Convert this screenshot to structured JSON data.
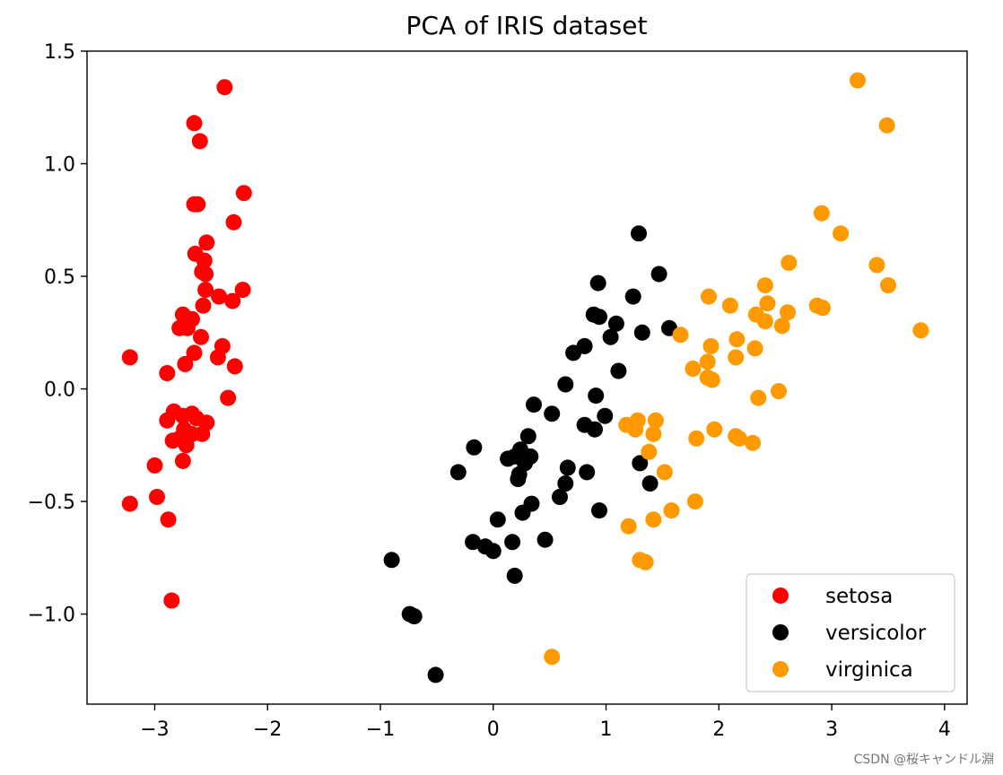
{
  "chart_data": {
    "type": "scatter",
    "title": "PCA of IRIS dataset",
    "xlabel": "",
    "ylabel": "",
    "xlim": [
      -3.6,
      4.2
    ],
    "ylim": [
      -1.4,
      1.5
    ],
    "xticks": [
      -3,
      -2,
      -1,
      0,
      1,
      2,
      3,
      4
    ],
    "xtick_labels": [
      "−3",
      "−2",
      "−1",
      "0",
      "1",
      "2",
      "3",
      "4"
    ],
    "yticks": [
      1.5,
      1.0,
      0.5,
      0.0,
      -0.5,
      -1.0
    ],
    "ytick_labels": [
      "1.5",
      "1.0",
      "0.5",
      "0.0",
      "−0.5",
      "−1.0"
    ],
    "grid": false,
    "legend_position": "lower-right",
    "series": [
      {
        "name": "setosa",
        "color": "#ff0000",
        "points": [
          [
            -2.38,
            1.34
          ],
          [
            -2.65,
            1.18
          ],
          [
            -2.6,
            1.1
          ],
          [
            -2.21,
            0.87
          ],
          [
            -2.65,
            0.82
          ],
          [
            -2.62,
            0.82
          ],
          [
            -2.3,
            0.74
          ],
          [
            -2.54,
            0.65
          ],
          [
            -2.64,
            0.6
          ],
          [
            -2.56,
            0.57
          ],
          [
            -2.58,
            0.52
          ],
          [
            -2.55,
            0.51
          ],
          [
            -2.55,
            0.44
          ],
          [
            -2.22,
            0.44
          ],
          [
            -2.43,
            0.41
          ],
          [
            -2.31,
            0.39
          ],
          [
            -2.57,
            0.37
          ],
          [
            -2.75,
            0.33
          ],
          [
            -2.67,
            0.31
          ],
          [
            -2.78,
            0.27
          ],
          [
            -2.71,
            0.27
          ],
          [
            -2.59,
            0.23
          ],
          [
            -2.4,
            0.19
          ],
          [
            -2.65,
            0.16
          ],
          [
            -3.22,
            0.14
          ],
          [
            -2.44,
            0.14
          ],
          [
            -2.73,
            0.11
          ],
          [
            -2.29,
            0.1
          ],
          [
            -2.89,
            0.07
          ],
          [
            -2.35,
            -0.04
          ],
          [
            -2.83,
            -0.1
          ],
          [
            -2.67,
            -0.11
          ],
          [
            -2.75,
            -0.12
          ],
          [
            -2.63,
            -0.13
          ],
          [
            -2.89,
            -0.14
          ],
          [
            -2.54,
            -0.15
          ],
          [
            -2.74,
            -0.18
          ],
          [
            -2.67,
            -0.2
          ],
          [
            -2.58,
            -0.2
          ],
          [
            -2.84,
            -0.23
          ],
          [
            -2.78,
            -0.22
          ],
          [
            -2.72,
            -0.25
          ],
          [
            -2.75,
            -0.32
          ],
          [
            -3.0,
            -0.34
          ],
          [
            -2.98,
            -0.48
          ],
          [
            -3.22,
            -0.51
          ],
          [
            -2.88,
            -0.58
          ],
          [
            -2.85,
            -0.94
          ]
        ]
      },
      {
        "name": "versicolor",
        "color": "#000000",
        "points": [
          [
            1.29,
            0.69
          ],
          [
            1.47,
            0.51
          ],
          [
            0.93,
            0.47
          ],
          [
            1.24,
            0.41
          ],
          [
            0.89,
            0.33
          ],
          [
            0.94,
            0.32
          ],
          [
            1.09,
            0.29
          ],
          [
            1.56,
            0.27
          ],
          [
            1.32,
            0.25
          ],
          [
            1.04,
            0.23
          ],
          [
            0.81,
            0.19
          ],
          [
            0.71,
            0.16
          ],
          [
            1.11,
            0.08
          ],
          [
            0.64,
            0.02
          ],
          [
            0.91,
            -0.03
          ],
          [
            0.36,
            -0.07
          ],
          [
            0.99,
            -0.12
          ],
          [
            0.52,
            -0.11
          ],
          [
            0.81,
            -0.16
          ],
          [
            0.9,
            -0.18
          ],
          [
            0.31,
            -0.21
          ],
          [
            -0.17,
            -0.26
          ],
          [
            0.24,
            -0.27
          ],
          [
            0.19,
            -0.3
          ],
          [
            0.33,
            -0.3
          ],
          [
            0.28,
            -0.33
          ],
          [
            0.13,
            -0.31
          ],
          [
            1.3,
            -0.33
          ],
          [
            0.66,
            -0.35
          ],
          [
            0.83,
            -0.37
          ],
          [
            -0.31,
            -0.37
          ],
          [
            0.23,
            -0.38
          ],
          [
            0.22,
            -0.4
          ],
          [
            1.39,
            -0.42
          ],
          [
            0.64,
            -0.42
          ],
          [
            0.59,
            -0.48
          ],
          [
            0.34,
            -0.51
          ],
          [
            0.26,
            -0.55
          ],
          [
            0.94,
            -0.54
          ],
          [
            0.04,
            -0.58
          ],
          [
            0.46,
            -0.67
          ],
          [
            -0.18,
            -0.68
          ],
          [
            0.17,
            -0.68
          ],
          [
            -0.07,
            -0.7
          ],
          [
            0.0,
            -0.72
          ],
          [
            0.19,
            -0.83
          ],
          [
            -0.9,
            -0.76
          ],
          [
            -0.74,
            -1.0
          ],
          [
            -0.7,
            -1.01
          ],
          [
            -0.51,
            -1.27
          ]
        ]
      },
      {
        "name": "virginica",
        "color": "#ff9900",
        "points": [
          [
            3.23,
            1.37
          ],
          [
            3.49,
            1.17
          ],
          [
            2.91,
            0.78
          ],
          [
            3.08,
            0.69
          ],
          [
            2.62,
            0.56
          ],
          [
            3.4,
            0.55
          ],
          [
            3.5,
            0.46
          ],
          [
            2.41,
            0.46
          ],
          [
            1.91,
            0.41
          ],
          [
            2.1,
            0.37
          ],
          [
            2.43,
            0.38
          ],
          [
            2.87,
            0.37
          ],
          [
            2.92,
            0.36
          ],
          [
            2.33,
            0.33
          ],
          [
            2.61,
            0.34
          ],
          [
            2.41,
            0.3
          ],
          [
            2.56,
            0.28
          ],
          [
            3.79,
            0.26
          ],
          [
            1.66,
            0.24
          ],
          [
            2.16,
            0.22
          ],
          [
            1.93,
            0.19
          ],
          [
            2.32,
            0.18
          ],
          [
            2.15,
            0.14
          ],
          [
            1.9,
            0.12
          ],
          [
            1.77,
            0.09
          ],
          [
            1.9,
            0.05
          ],
          [
            1.94,
            0.04
          ],
          [
            2.53,
            -0.01
          ],
          [
            2.35,
            -0.04
          ],
          [
            1.28,
            -0.14
          ],
          [
            1.44,
            -0.14
          ],
          [
            1.18,
            -0.16
          ],
          [
            1.26,
            -0.18
          ],
          [
            1.96,
            -0.18
          ],
          [
            1.42,
            -0.2
          ],
          [
            2.15,
            -0.21
          ],
          [
            2.18,
            -0.22
          ],
          [
            1.8,
            -0.22
          ],
          [
            2.3,
            -0.24
          ],
          [
            1.38,
            -0.28
          ],
          [
            1.52,
            -0.37
          ],
          [
            1.79,
            -0.5
          ],
          [
            1.58,
            -0.54
          ],
          [
            1.42,
            -0.58
          ],
          [
            1.2,
            -0.61
          ],
          [
            1.3,
            -0.76
          ],
          [
            1.35,
            -0.77
          ],
          [
            0.52,
            -1.19
          ]
        ]
      }
    ]
  },
  "watermark": "CSDN @桜キャンドル淵"
}
